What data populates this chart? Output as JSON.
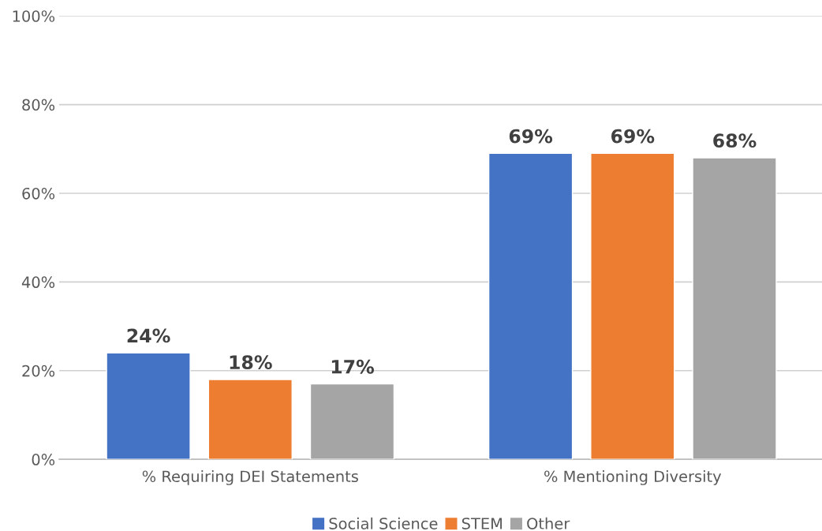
{
  "chart_data": {
    "type": "bar",
    "categories": [
      "% Requiring DEI Statements",
      "% Mentioning Diversity"
    ],
    "series": [
      {
        "name": "Social Science",
        "color": "#4472c4",
        "values": [
          24,
          69
        ],
        "value_labels": [
          "24%",
          "69%"
        ]
      },
      {
        "name": "STEM",
        "color": "#ed7d31",
        "values": [
          18,
          69
        ],
        "value_labels": [
          "18%",
          "69%"
        ]
      },
      {
        "name": "Other",
        "color": "#a5a5a5",
        "values": [
          17,
          68
        ],
        "value_labels": [
          "17%",
          "68%"
        ]
      }
    ],
    "ylim": [
      0,
      100
    ],
    "yticks": [
      {
        "value": 0,
        "label": "0%"
      },
      {
        "value": 20,
        "label": "20%"
      },
      {
        "value": 40,
        "label": "40%"
      },
      {
        "value": 60,
        "label": "60%"
      },
      {
        "value": 80,
        "label": "80%"
      },
      {
        "value": 100,
        "label": "100%"
      }
    ],
    "grid": "y",
    "legend": "bottom"
  }
}
